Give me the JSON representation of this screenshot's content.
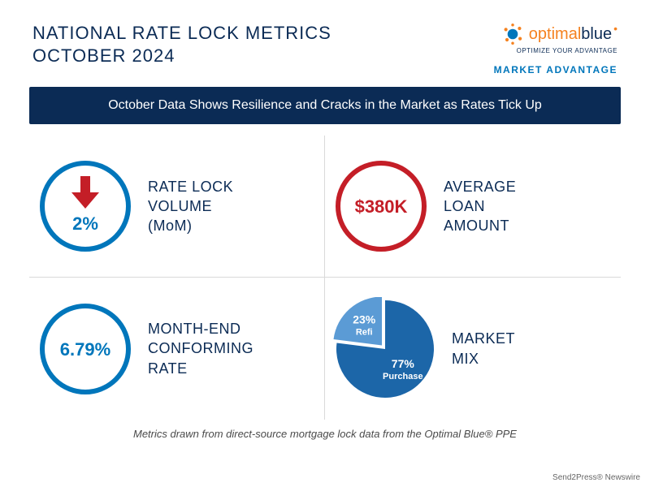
{
  "colors": {
    "navy": "#0b2b55",
    "red": "#c41e27",
    "orange": "#f58220",
    "blue_accent": "#0076bb",
    "grid_border": "#d9d9d9",
    "pie_main": "#1c66a8",
    "pie_slice": "#5b9bd5",
    "text_dark": "#0b2b55",
    "footnote": "#4a4a4a"
  },
  "header": {
    "title_line1": "NATIONAL RATE LOCK METRICS",
    "title_line2": "OCTOBER 2024",
    "logo_text": "optimalblue",
    "logo_tagline": "OPTIMIZE YOUR ADVANTAGE",
    "market_advantage": "MARKET ADVANTAGE"
  },
  "banner": "October Data Shows Resilience and Cracks in the Market as Rates Tick Up",
  "metrics": {
    "rate_lock": {
      "value": "2%",
      "label": "RATE LOCK\nVOLUME\n(MoM)",
      "ring_color": "#0076bb",
      "value_color": "#0076bb",
      "arrow_color": "#c41e27",
      "circle_diameter": 118,
      "ring_width": 6
    },
    "avg_loan": {
      "value": "$380K",
      "label": "AVERAGE\nLOAN\nAMOUNT",
      "ring_color": "#c41e27",
      "value_color": "#c41e27",
      "circle_diameter": 118,
      "ring_width": 6
    },
    "conforming_rate": {
      "value": "6.79%",
      "label": "MONTH-END\nCONFORMING\nRATE",
      "ring_color": "#0076bb",
      "value_color": "#0076bb",
      "circle_diameter": 118,
      "ring_width": 6
    },
    "market_mix": {
      "label": "MARKET\nMIX",
      "pie": {
        "diameter": 128,
        "background": "#ffffff",
        "slices": [
          {
            "name": "Purchase",
            "pct": 77,
            "pct_label": "77%",
            "color": "#1c66a8"
          },
          {
            "name": "Refi",
            "pct": 23,
            "pct_label": "23%",
            "color": "#5b9bd5"
          }
        ]
      }
    }
  },
  "footnote": "Metrics drawn from direct-source mortgage lock data from the Optimal Blue® PPE",
  "newswire": "Send2Press® Newswire"
}
